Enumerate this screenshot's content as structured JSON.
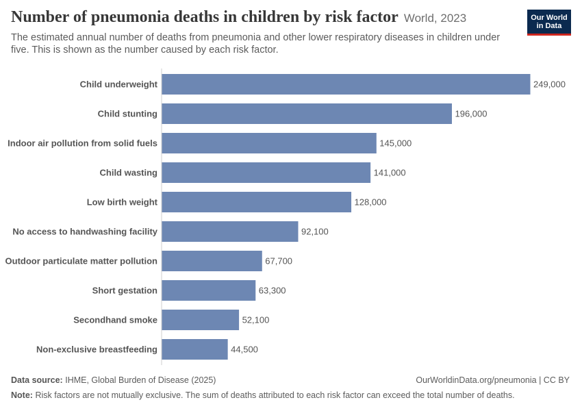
{
  "header": {
    "title": "Number of pneumonia deaths in children by risk factor",
    "context": "World, 2023",
    "subtitle": "The estimated annual number of deaths from pneumonia and other lower respiratory diseases in children under five. This is shown as the number caused by each risk factor."
  },
  "logo": {
    "line1": "Our World",
    "line2": "in Data",
    "bg_color": "#0b2a4f",
    "accent_color": "#ce261e"
  },
  "chart_data": {
    "type": "bar",
    "orientation": "horizontal",
    "categories": [
      "Child underweight",
      "Child stunting",
      "Indoor air pollution from solid fuels",
      "Child wasting",
      "Low birth weight",
      "No access to handwashing facility",
      "Outdoor particulate matter pollution",
      "Short gestation",
      "Secondhand smoke",
      "Non-exclusive breastfeeding"
    ],
    "values": [
      249000,
      196000,
      145000,
      141000,
      128000,
      92100,
      67700,
      63300,
      52100,
      44500
    ],
    "value_labels": [
      "249,000",
      "196,000",
      "145,000",
      "141,000",
      "128,000",
      "92,100",
      "67,700",
      "63,300",
      "52,100",
      "44,500"
    ],
    "bar_color": "#6d87b3",
    "xlim": [
      0,
      249000
    ],
    "grid": false
  },
  "footer": {
    "source_label": "Data source:",
    "source_text": "IHME, Global Burden of Disease (2025)",
    "url_text": "OurWorldinData.org/pneumonia | CC BY",
    "note_label": "Note:",
    "note_text": "Risk factors are not mutually exclusive. The sum of deaths attributed to each risk factor can exceed the total number of deaths."
  }
}
